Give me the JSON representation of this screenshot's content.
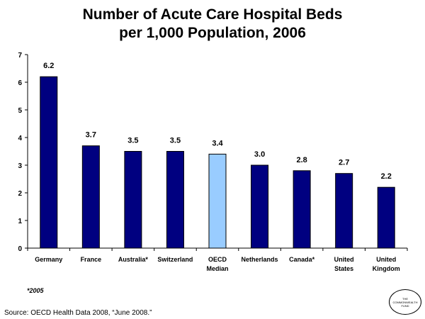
{
  "chart_data": {
    "type": "bar",
    "title_lines": [
      "Number of Acute Care Hospital Beds",
      "per 1,000 Population, 2006"
    ],
    "categories": [
      [
        "Germany"
      ],
      [
        "France"
      ],
      [
        "Australia*"
      ],
      [
        "Switzerland"
      ],
      [
        "OECD",
        "Median"
      ],
      [
        "Netherlands"
      ],
      [
        "Canada*"
      ],
      [
        "United",
        "States"
      ],
      [
        "United",
        "Kingdom"
      ]
    ],
    "values": [
      6.2,
      3.7,
      3.5,
      3.5,
      3.4,
      3.0,
      2.8,
      2.7,
      2.2
    ],
    "data_labels": [
      "6.2",
      "3.7",
      "3.5",
      "3.5",
      "3.4",
      "3.0",
      "2.8",
      "2.7",
      "2.2"
    ],
    "highlight_index": 4,
    "colors": {
      "bar": "#000080",
      "highlight": "#99ccff",
      "outline": "#000000"
    },
    "ylim": [
      0,
      7
    ],
    "yticks": [
      0,
      1,
      2,
      3,
      4,
      5,
      6,
      7
    ],
    "xlabel": "",
    "ylabel": "",
    "grid": false,
    "legend": "none"
  },
  "footnote": "*2005",
  "source": "Source: OECD Health Data 2008, “June 2008.”",
  "logo": {
    "line1": "THE",
    "line2": "COMMONWEALTH",
    "line3": "FUND"
  }
}
